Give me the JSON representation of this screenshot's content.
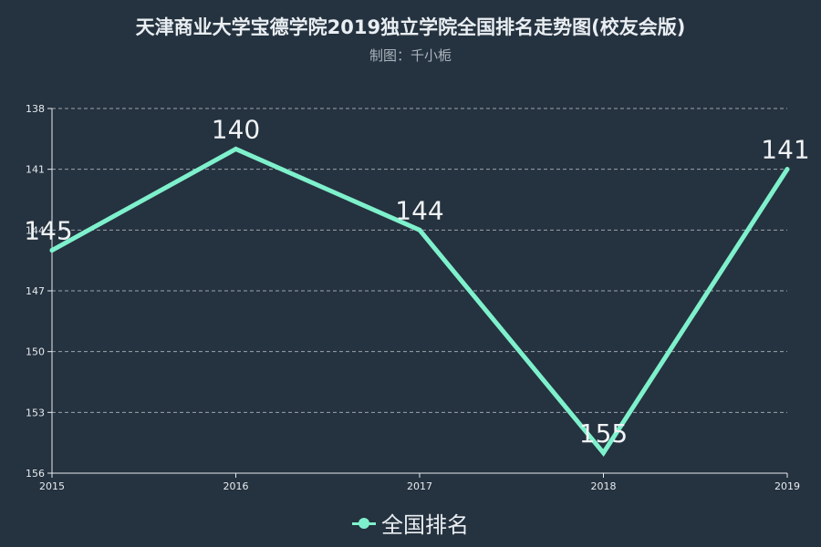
{
  "header": {
    "title": "天津商业大学宝德学院2019独立学院全国排名走势图(校友会版)",
    "subtitle": "制图：千小栀"
  },
  "legend": {
    "series_label": "全国排名",
    "color": "#7ef1cc"
  },
  "colors": {
    "background": "#25323f",
    "series": "#7ef1cc",
    "grid": "#9aa4ad",
    "axis": "#e6ebef"
  },
  "chart_data": {
    "type": "line",
    "title": "天津商业大学宝德学院2019独立学院全国排名走势图(校友会版)",
    "subtitle": "制图：千小栀",
    "xlabel": "",
    "ylabel": "",
    "x": [
      "2015",
      "2016",
      "2017",
      "2018",
      "2019"
    ],
    "series": [
      {
        "name": "全国排名",
        "values": [
          145,
          140,
          144,
          155,
          141
        ]
      }
    ],
    "yticks": [
      138,
      141,
      144,
      147,
      150,
      153,
      156
    ],
    "ylim": [
      138,
      156
    ],
    "y_inverted": true,
    "grid": true,
    "legend_position": "bottom-center"
  }
}
